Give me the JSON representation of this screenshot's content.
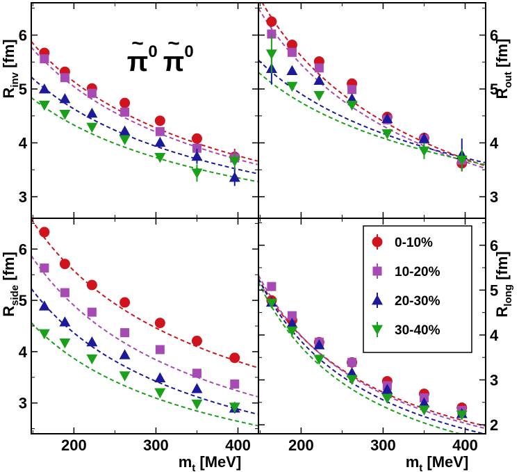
{
  "chart_data": {
    "type": "scatter",
    "title": "π̃⁰π̃⁰",
    "title_parts": {
      "symbol": "π",
      "superscript": "0",
      "tilde": "~"
    },
    "x_axis": {
      "label_main": "m",
      "label_sub": "t",
      "label_unit": " [MeV]",
      "range": [
        148,
        425
      ],
      "ticks": [
        200,
        300,
        400
      ],
      "tick_labels": [
        "200",
        "300",
        "400"
      ]
    },
    "series_styles": [
      {
        "name": "0-10%",
        "color": "#d0141e",
        "marker": "circle"
      },
      {
        "name": "10-20%",
        "color": "#a64bb4",
        "marker": "square"
      },
      {
        "name": "20-30%",
        "color": "#1a1a9a",
        "marker": "triangle-up"
      },
      {
        "name": "30-40%",
        "color": "#1aa01a",
        "marker": "triangle-down"
      }
    ],
    "legend": {
      "position": "inside panel R_long, top-right",
      "entries": [
        "0-10%",
        "10-20%",
        "20-30%",
        "30-40%"
      ]
    },
    "panels": [
      {
        "id": "inv",
        "label_main": "R",
        "label_sub": "inv",
        "label_unit": " [fm]",
        "label_side": "left",
        "ylim": [
          2.6,
          6.6
        ],
        "yticks": [
          3,
          4,
          5,
          6
        ],
        "ytick_labels": [
          "3",
          "4",
          "5",
          "6"
        ],
        "show_title": true,
        "series": [
          {
            "name": "0-10%",
            "x": [
              164,
              189,
              222,
              262,
              305,
              350,
              396
            ],
            "y": [
              5.67,
              5.32,
              5.01,
              4.74,
              4.41,
              4.08,
              3.74
            ],
            "err": [
              0.05,
              0.05,
              0.05,
              0.05,
              0.06,
              0.08,
              0.15
            ],
            "fit": {
              "a": 5.6,
              "b": 0.45,
              "m0": 0
            }
          },
          {
            "name": "10-20%",
            "x": [
              164,
              189,
              222,
              262,
              305,
              350,
              396
            ],
            "y": [
              5.56,
              5.21,
              4.92,
              4.57,
              4.21,
              3.9,
              3.72
            ],
            "err": [
              0.05,
              0.05,
              0.05,
              0.05,
              0.06,
              0.08,
              0.14
            ],
            "fit": {
              "a": 5.5,
              "b": 0.45
            }
          },
          {
            "name": "20-30%",
            "x": [
              164,
              189,
              222,
              262,
              305,
              350,
              396
            ],
            "y": [
              5.0,
              4.82,
              4.55,
              4.22,
              4.01,
              3.75,
              3.36
            ],
            "err": [
              0.05,
              0.05,
              0.05,
              0.05,
              0.07,
              0.14,
              0.16
            ],
            "fit": {
              "a": 5.0,
              "b": 0.4
            }
          },
          {
            "name": "30-40%",
            "x": [
              164,
              189,
              222,
              262,
              305,
              350,
              396
            ],
            "y": [
              4.7,
              4.53,
              4.29,
              4.06,
              3.73,
              3.44,
              3.66
            ],
            "err": [
              0.05,
              0.05,
              0.05,
              0.06,
              0.07,
              0.16,
              0.15
            ],
            "fit": {
              "a": 4.65,
              "b": 0.37
            }
          }
        ]
      },
      {
        "id": "out",
        "label_main": "R",
        "label_sub": "out",
        "label_unit": " [fm]",
        "label_side": "right",
        "ylim": [
          2.6,
          6.6
        ],
        "yticks": [
          3,
          4,
          5,
          6
        ],
        "ytick_labels": [
          "3",
          "4",
          "5",
          "6"
        ],
        "show_title": false,
        "series": [
          {
            "name": "0-10%",
            "x": [
              164,
              189,
              222,
              262,
              305,
              350,
              396
            ],
            "y": [
              6.25,
              5.82,
              5.51,
              5.1,
              4.48,
              4.09,
              3.62
            ],
            "err": [
              0.1,
              0.08,
              0.06,
              0.06,
              0.07,
              0.1,
              0.15
            ],
            "fit": {
              "a": 6.3,
              "b": 0.6
            }
          },
          {
            "name": "10-20%",
            "x": [
              164,
              189,
              222,
              262,
              305,
              350,
              396
            ],
            "y": [
              6.02,
              5.68,
              5.39,
              4.99,
              4.43,
              4.07,
              3.68
            ],
            "err": [
              0.1,
              0.08,
              0.06,
              0.06,
              0.07,
              0.1,
              0.15
            ],
            "fit": {
              "a": 6.1,
              "b": 0.58
            }
          },
          {
            "name": "20-30%",
            "x": [
              164,
              189,
              222,
              262,
              305,
              350,
              396
            ],
            "y": [
              5.38,
              5.34,
              5.16,
              4.82,
              4.45,
              4.08,
              3.78
            ],
            "err": [
              0.3,
              0.08,
              0.06,
              0.06,
              0.07,
              0.1,
              0.3
            ],
            "fit": {
              "a": 5.3,
              "b": 0.4
            }
          },
          {
            "name": "30-40%",
            "x": [
              164,
              189,
              222,
              262,
              305,
              350,
              396
            ],
            "y": [
              5.65,
              5.05,
              4.88,
              4.7,
              4.17,
              3.85,
              3.68
            ],
            "err": [
              0.35,
              0.08,
              0.06,
              0.06,
              0.07,
              0.15,
              0.2
            ],
            "fit": {
              "a": 5.1,
              "b": 0.37
            }
          }
        ]
      },
      {
        "id": "side",
        "label_main": "R",
        "label_sub": "side",
        "label_unit": " [fm]",
        "label_side": "left",
        "ylim": [
          2.4,
          6.6
        ],
        "yticks": [
          3,
          4,
          5,
          6
        ],
        "ytick_labels": [
          "3",
          "4",
          "5",
          "6"
        ],
        "show_title": false,
        "series": [
          {
            "name": "0-10%",
            "x": [
              164,
              189,
              222,
              262,
              305,
              350,
              396
            ],
            "y": [
              6.33,
              5.71,
              5.3,
              4.96,
              4.56,
              4.21,
              3.88
            ],
            "err": [
              0.06,
              0.06,
              0.05,
              0.05,
              0.06,
              0.07,
              0.09
            ],
            "fit": {
              "a": 6.2,
              "b": 0.55
            }
          },
          {
            "name": "10-20%",
            "x": [
              164,
              189,
              222,
              262,
              305,
              350,
              396
            ],
            "y": [
              5.63,
              5.15,
              4.77,
              4.37,
              4.04,
              3.58,
              3.37
            ],
            "err": [
              0.06,
              0.06,
              0.05,
              0.05,
              0.06,
              0.07,
              0.09
            ],
            "fit": {
              "a": 5.5,
              "b": 0.6
            }
          },
          {
            "name": "20-30%",
            "x": [
              164,
              189,
              222,
              262,
              305,
              350,
              396
            ],
            "y": [
              4.89,
              4.58,
              4.19,
              3.94,
              3.49,
              3.28,
              2.9
            ],
            "err": [
              0.06,
              0.06,
              0.05,
              0.05,
              0.06,
              0.08,
              0.1
            ],
            "fit": {
              "a": 4.9,
              "b": 0.6
            }
          },
          {
            "name": "30-40%",
            "x": [
              164,
              189,
              222,
              262,
              305,
              350,
              396
            ],
            "y": [
              4.35,
              4.17,
              3.86,
              3.53,
              3.2,
              2.98,
              2.92
            ],
            "err": [
              0.06,
              0.06,
              0.05,
              0.05,
              0.06,
              0.08,
              0.1
            ],
            "fit": {
              "a": 4.3,
              "b": 0.55
            }
          }
        ]
      },
      {
        "id": "long",
        "label_main": "R",
        "label_sub": "long",
        "label_unit": " [fm]",
        "label_side": "right",
        "ylim": [
          1.8,
          6.6
        ],
        "yticks": [
          2,
          3,
          4,
          5,
          6
        ],
        "ytick_labels": [
          "2",
          "3",
          "4",
          "5",
          "6"
        ],
        "show_title": false,
        "series": [
          {
            "name": "0-10%",
            "x": [
              164,
              189,
              222,
              262,
              305,
              350,
              396
            ],
            "y": [
              4.77,
              4.33,
              3.84,
              3.39,
              2.97,
              2.69,
              2.38
            ],
            "err": [
              0.07,
              0.06,
              0.05,
              0.05,
              0.05,
              0.05,
              0.05
            ],
            "fit": {
              "a": 4.75,
              "b": 0.93
            }
          },
          {
            "name": "10-20%",
            "x": [
              164,
              189,
              222,
              262,
              305,
              350,
              396
            ],
            "y": [
              5.08,
              4.43,
              3.84,
              3.39,
              2.87,
              2.6,
              2.32
            ],
            "err": [
              0.07,
              0.06,
              0.05,
              0.05,
              0.05,
              0.05,
              0.05
            ],
            "fit": {
              "a": 4.8,
              "b": 0.97
            }
          },
          {
            "name": "20-30%",
            "x": [
              164,
              189,
              222,
              262,
              305,
              350,
              396
            ],
            "y": [
              4.73,
              4.26,
              3.78,
              3.16,
              2.79,
              2.49,
              2.25
            ],
            "err": [
              0.07,
              0.06,
              0.05,
              0.05,
              0.05,
              0.05,
              0.05
            ],
            "fit": {
              "a": 4.7,
              "b": 1.02
            }
          },
          {
            "name": "30-40%",
            "x": [
              164,
              189,
              222,
              262,
              305,
              350,
              396
            ],
            "y": [
              4.71,
              4.09,
              3.46,
              3.01,
              2.59,
              2.33,
              2.22
            ],
            "err": [
              0.07,
              0.06,
              0.05,
              0.05,
              0.05,
              0.05,
              0.05
            ],
            "fit": {
              "a": 4.6,
              "b": 1.08
            }
          }
        ]
      }
    ]
  }
}
